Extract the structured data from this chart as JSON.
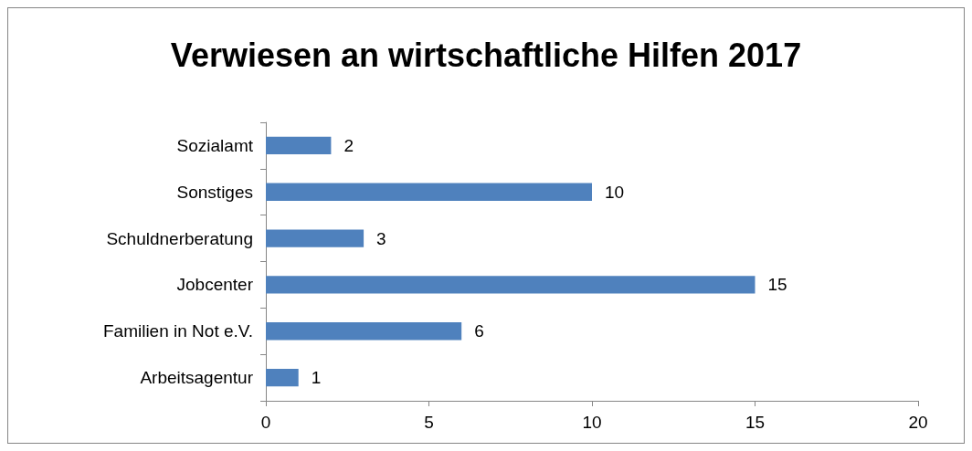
{
  "chart_data": {
    "type": "bar",
    "orientation": "horizontal",
    "title": "Verwiesen an wirtschaftliche Hilfen 2017",
    "categories": [
      "Sozialamt",
      "Sonstiges",
      "Schuldnerberatung",
      "Jobcenter",
      "Familien in Not e.V.",
      "Arbeitsagentur"
    ],
    "values": [
      2,
      10,
      3,
      15,
      6,
      1
    ],
    "color": "#4f81bd",
    "xlim": [
      0,
      20
    ],
    "xticks": [
      0,
      5,
      10,
      15,
      20
    ],
    "grid": false,
    "data_labels": true
  }
}
